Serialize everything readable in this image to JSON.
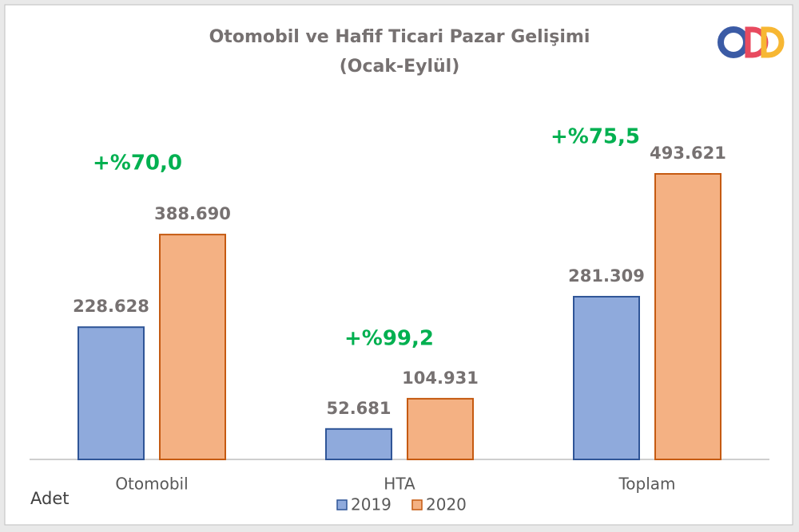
{
  "chart_data": {
    "type": "bar",
    "title": "Otomobil ve Hafif Ticari Pazar Gelişimi",
    "subtitle": "(Ocak-Eylül)",
    "unit_label": "Adet",
    "categories": [
      "Otomobil",
      "HTA",
      "Toplam"
    ],
    "series": [
      {
        "name": "2019",
        "color": "#8faadc",
        "values": [
          228628,
          52681,
          281309
        ],
        "value_labels": [
          "228.628",
          "52.681",
          "281.309"
        ]
      },
      {
        "name": "2020",
        "color": "#f4b183",
        "values": [
          388690,
          104931,
          493621
        ],
        "value_labels": [
          "388.690",
          "104.931",
          "493.621"
        ]
      }
    ],
    "annotations": [
      "+%70,0",
      "+%99,2",
      "+%75,5"
    ],
    "annotation_color": "#00b050"
  }
}
